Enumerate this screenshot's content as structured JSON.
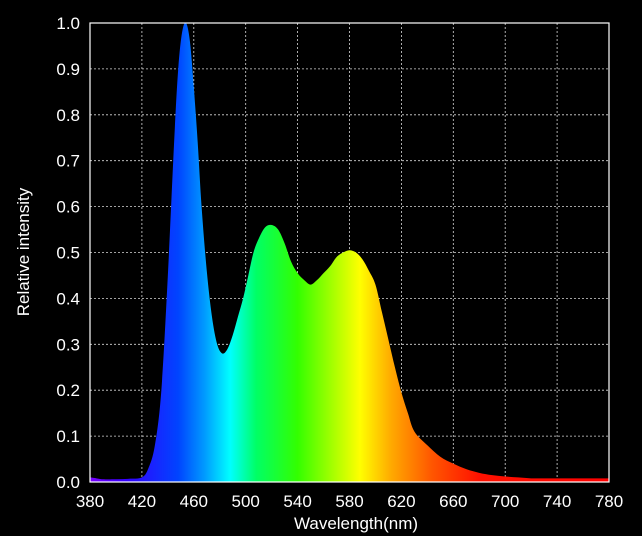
{
  "chart_data": {
    "type": "area",
    "title": "",
    "xlabel": "Wavelength(nm)",
    "ylabel": "Relative intensity",
    "xlim": [
      380,
      780
    ],
    "ylim": [
      0,
      1.0
    ],
    "x_ticks": [
      380,
      420,
      460,
      500,
      540,
      580,
      620,
      660,
      700,
      740,
      780
    ],
    "y_ticks": [
      0.0,
      0.1,
      0.2,
      0.3,
      0.4,
      0.5,
      0.6,
      0.7,
      0.8,
      0.9,
      1.0
    ],
    "y_tick_labels": [
      "0.0",
      "0.1",
      "0.2",
      "0.3",
      "0.4",
      "0.5",
      "0.6",
      "0.7",
      "0.8",
      "0.9",
      "1.0"
    ],
    "grid": true,
    "series": [
      {
        "x": [
          380,
          385,
          390,
          400,
          410,
          420,
          425,
          430,
          435,
          440,
          445,
          448,
          451,
          454,
          457,
          460,
          463,
          466,
          470,
          474,
          478,
          482,
          486,
          490,
          494,
          498,
          502,
          506,
          510,
          515,
          520,
          525,
          530,
          535,
          540,
          545,
          550,
          555,
          560,
          565,
          570,
          575,
          580,
          585,
          590,
          595,
          600,
          605,
          610,
          615,
          620,
          625,
          630,
          640,
          650,
          660,
          670,
          680,
          690,
          700,
          710,
          720,
          730,
          740,
          750,
          760,
          770,
          780
        ],
        "y": [
          0.01,
          0.008,
          0.006,
          0.006,
          0.007,
          0.01,
          0.03,
          0.08,
          0.2,
          0.45,
          0.75,
          0.9,
          0.98,
          1.0,
          0.96,
          0.86,
          0.74,
          0.6,
          0.46,
          0.36,
          0.3,
          0.28,
          0.29,
          0.32,
          0.36,
          0.4,
          0.45,
          0.5,
          0.53,
          0.555,
          0.56,
          0.55,
          0.52,
          0.48,
          0.455,
          0.44,
          0.43,
          0.44,
          0.455,
          0.47,
          0.49,
          0.5,
          0.505,
          0.5,
          0.485,
          0.46,
          0.43,
          0.37,
          0.31,
          0.25,
          0.195,
          0.15,
          0.11,
          0.08,
          0.055,
          0.04,
          0.028,
          0.02,
          0.015,
          0.012,
          0.01,
          0.008,
          0.008,
          0.008,
          0.008,
          0.008,
          0.008,
          0.008
        ]
      }
    ]
  }
}
